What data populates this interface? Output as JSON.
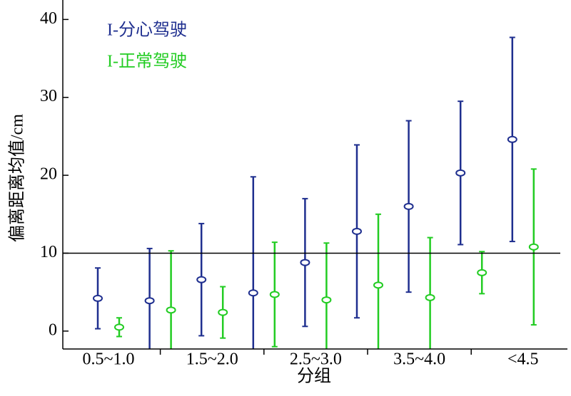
{
  "chart_data": {
    "type": "errorbar",
    "xlabel": "分组",
    "ylabel": "偏离距离均值/cm",
    "categories": [
      "0.5~1.0",
      null,
      "1.5~2.0",
      null,
      "2.5~3.0",
      null,
      "3.5~4.0",
      null,
      "<4.5"
    ],
    "series": [
      {
        "name": "I-分心驾驶",
        "color": "#1f2f8f",
        "values": [
          4.2,
          3.9,
          6.6,
          4.9,
          8.8,
          12.8,
          16.0,
          20.3,
          24.6
        ],
        "errors": [
          3.9,
          6.7,
          7.2,
          14.9,
          8.2,
          11.1,
          11.0,
          9.2,
          13.1
        ]
      },
      {
        "name": "I-正常驾驶",
        "color": "#22cc22",
        "values": [
          0.5,
          2.7,
          2.4,
          4.7,
          4.0,
          5.9,
          4.3,
          7.5,
          10.8
        ],
        "errors": [
          1.2,
          7.6,
          3.3,
          6.7,
          7.3,
          9.1,
          7.7,
          2.7,
          10.0
        ]
      }
    ],
    "reference_line": 10,
    "ylim": [
      -2.3,
      42.5
    ],
    "yticks": [
      0,
      10,
      20,
      30,
      40
    ]
  }
}
